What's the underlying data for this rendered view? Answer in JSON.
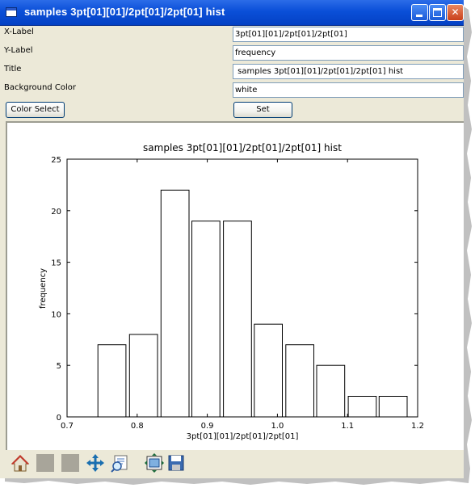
{
  "window": {
    "title": "samples 3pt[01][01]/2pt[01]/2pt[01] hist"
  },
  "form": {
    "x_label": {
      "label": "X-Label",
      "value": "3pt[01][01]/2pt[01]/2pt[01]"
    },
    "y_label": {
      "label": "Y-Label",
      "value": "frequency"
    },
    "title": {
      "label": "Title",
      "value": " samples 3pt[01][01]/2pt[01]/2pt[01] hist"
    },
    "background_color": {
      "label": "Background Color",
      "value": "white"
    },
    "color_select_label": "Color Select",
    "set_label": "Set"
  },
  "toolbar": {
    "items": [
      "home-icon",
      "back-icon",
      "forward-icon",
      "pan-icon",
      "zoom-icon",
      "subplot-config-icon",
      "save-icon"
    ]
  },
  "chart_data": {
    "type": "bar",
    "title": "samples 3pt[01][01]/2pt[01]/2pt[01] hist",
    "xlabel": "3pt[01][01]/2pt[01]/2pt[01]",
    "ylabel": "frequency",
    "xlim": [
      0.7,
      1.2
    ],
    "ylim": [
      0,
      25
    ],
    "xticks": [
      "0.7",
      "0.8",
      "0.9",
      "1.0",
      "1.1",
      "1.2"
    ],
    "yticks": [
      "0",
      "5",
      "10",
      "15",
      "20",
      "25"
    ],
    "bin_width": 0.0445,
    "bars": [
      {
        "x0": 0.744,
        "x1": 0.784,
        "value": 7
      },
      {
        "x0": 0.789,
        "x1": 0.829,
        "value": 8
      },
      {
        "x0": 0.834,
        "x1": 0.874,
        "value": 22
      },
      {
        "x0": 0.878,
        "x1": 0.918,
        "value": 19
      },
      {
        "x0": 0.923,
        "x1": 0.963,
        "value": 19
      },
      {
        "x0": 0.967,
        "x1": 1.007,
        "value": 9
      },
      {
        "x0": 1.012,
        "x1": 1.052,
        "value": 7
      },
      {
        "x0": 1.056,
        "x1": 1.096,
        "value": 5
      },
      {
        "x0": 1.101,
        "x1": 1.141,
        "value": 2
      },
      {
        "x0": 1.145,
        "x1": 1.185,
        "value": 2
      }
    ],
    "bar_fill": "#ffffff",
    "bar_edge": "#000000",
    "grid": false,
    "background": "white"
  }
}
